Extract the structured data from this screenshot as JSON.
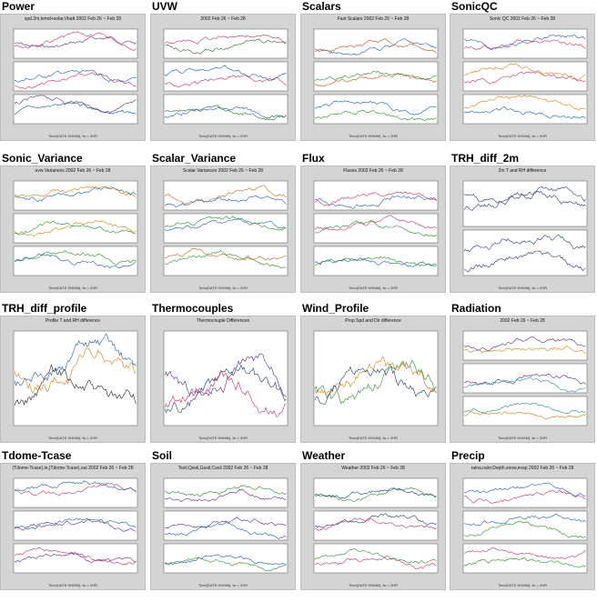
{
  "cells": [
    {
      "label": "Power",
      "title": "spd.2m,temd+solar,Vbatt 2002 Feb 26 ~ Feb 28",
      "colors": [
        "#5a2a7a",
        "#c0306a",
        "#1f5aa0"
      ]
    },
    {
      "label": "UVW",
      "title": "2002 Feb 26 ~ Feb 28",
      "colors": [
        "#2a6a2a",
        "#c0306a",
        "#1f5aa0"
      ]
    },
    {
      "label": "Scalars",
      "title": "Fast Scalars 2002 Feb 26 ~ Feb 28",
      "colors": [
        "#1f5aa0",
        "#c8501e",
        "#2a8a2a"
      ]
    },
    {
      "label": "SonicQC",
      "title": "Sonic QC 2002 Feb 26 ~ Feb 28",
      "colors": [
        "#1f5aa0",
        "#c0306a",
        "#d08010"
      ]
    },
    {
      "label": "Sonic_Variance",
      "title": "uvw Variances 2002 Feb 26 ~ Feb 28",
      "colors": [
        "#1f5aa0",
        "#d08010",
        "#2a8a2a"
      ]
    },
    {
      "label": "Scalar_Variance",
      "title": "Scalar Variances 2002 Feb 26 ~ Feb 28",
      "colors": [
        "#b06a20",
        "#1f5aa0",
        "#2a8a2a"
      ]
    },
    {
      "label": "Flux",
      "title": "Fluxes 2002 Feb 26 ~ Feb 28",
      "colors": [
        "#1f5aa0",
        "#c0306a",
        "#2a8a2a"
      ]
    },
    {
      "label": "TRH_diff_2m",
      "title": "2m T and RH difference",
      "colors": [
        "#1f3a6a",
        "#1f3a6a",
        "#1f3a6a"
      ]
    },
    {
      "label": "TRH_diff_profile",
      "title": "Profile T and RH difference",
      "colors": [
        "#d08010",
        "#1f5aa0",
        "#222222"
      ]
    },
    {
      "label": "Thermocouples",
      "title": "Thermocouple Differences",
      "colors": [
        "#5a2a7a",
        "#1f3a6a",
        "#c0306a"
      ]
    },
    {
      "label": "Wind_Profile",
      "title": "Prop Spd and Dir difference",
      "colors": [
        "#2a8a2a",
        "#d08010",
        "#1f3a6a"
      ]
    },
    {
      "label": "Radiation",
      "title": "2002 Feb 26 ~ Feb 28",
      "colors": [
        "#d08010",
        "#5a2a7a",
        "#2a8a9a"
      ]
    },
    {
      "label": "Tdome-Tcase",
      "title": "(Tdome-Tcase).in,(Tdome-Tcase).out 2002 Feb 26 ~ Feb 28",
      "colors": [
        "#c0306a",
        "#1f5aa0",
        "#5a2a7a"
      ]
    },
    {
      "label": "Soil",
      "title": "Tsoil,Qsoil,Gsoil,Csoil 2002 Feb 26 ~ Feb 28",
      "colors": [
        "#2a8a2a",
        "#5a2a7a",
        "#1f5aa0"
      ]
    },
    {
      "label": "Weather",
      "title": "Weather 2002 Feb 26 ~ Feb 28",
      "colors": [
        "#2a8a2a",
        "#1f3a6a",
        "#c0306a"
      ]
    },
    {
      "label": "Precip",
      "title": "raina,rainr,Depth.snow,evap 2002 Feb 26 ~ Feb 28",
      "colors": [
        "#c0306a",
        "#1f5aa0",
        "#2a8a2a"
      ]
    }
  ],
  "footer_text": "Time(DATE HHMM), tic = 2HR"
}
